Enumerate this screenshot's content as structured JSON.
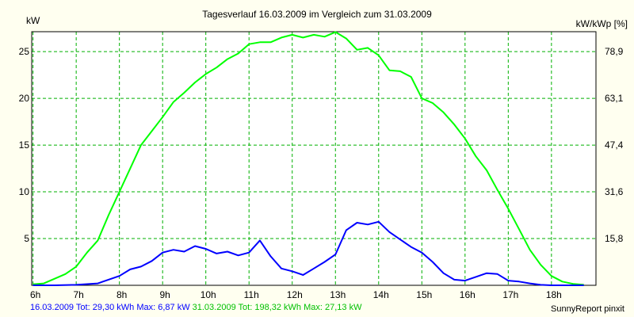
{
  "chart_data": {
    "type": "line",
    "title": "Tagesverlauf 16.03.2009 im Vergleich zum 31.03.2009",
    "ylabel": "kW",
    "ylabel_right": "kW/kWp [%]",
    "x_ticks": [
      "6h",
      "7h",
      "8h",
      "9h",
      "10h",
      "11h",
      "12h",
      "13h",
      "14h",
      "15h",
      "16h",
      "17h",
      "18h"
    ],
    "y_ticks": [
      5,
      10,
      15,
      20,
      25
    ],
    "y2_ticks": [
      "15,8",
      "31,6",
      "47,4",
      "63,1",
      "78,9"
    ],
    "xlim": [
      5.97,
      19.03
    ],
    "ylim": [
      0,
      27.13
    ],
    "grid": true,
    "series": [
      {
        "name": "31.03.2009",
        "color": "#00ff00",
        "x": [
          6.0,
          6.25,
          6.5,
          6.75,
          7.0,
          7.25,
          7.5,
          7.75,
          8.0,
          8.25,
          8.5,
          8.75,
          9.0,
          9.25,
          9.5,
          9.75,
          10.0,
          10.25,
          10.5,
          10.75,
          11.0,
          11.25,
          11.5,
          11.75,
          12.0,
          12.25,
          12.5,
          12.75,
          13.0,
          13.25,
          13.5,
          13.75,
          14.0,
          14.25,
          14.5,
          14.75,
          15.0,
          15.25,
          15.5,
          15.75,
          16.0,
          16.25,
          16.5,
          16.75,
          17.0,
          17.25,
          17.5,
          17.75,
          18.0,
          18.25,
          18.5,
          18.75
        ],
        "values": [
          0.1,
          0.2,
          0.7,
          1.2,
          2.0,
          3.5,
          4.8,
          7.5,
          10.0,
          12.5,
          15.0,
          16.5,
          18.0,
          19.6,
          20.6,
          21.7,
          22.6,
          23.3,
          24.2,
          24.8,
          25.8,
          26.0,
          26.0,
          26.5,
          26.8,
          26.5,
          26.8,
          26.6,
          27.1,
          26.4,
          25.2,
          25.4,
          24.6,
          23.0,
          22.9,
          22.3,
          20.0,
          19.5,
          18.5,
          17.2,
          15.7,
          13.8,
          12.3,
          10.2,
          8.2,
          6.0,
          3.8,
          2.2,
          1.0,
          0.4,
          0.15,
          0.05
        ]
      },
      {
        "name": "16.03.2009",
        "color": "#0000ff",
        "x": [
          6.0,
          6.5,
          7.0,
          7.5,
          8.0,
          8.25,
          8.5,
          8.75,
          9.0,
          9.25,
          9.5,
          9.75,
          10.0,
          10.25,
          10.5,
          10.75,
          11.0,
          11.25,
          11.5,
          11.75,
          12.0,
          12.25,
          12.5,
          12.75,
          13.0,
          13.25,
          13.5,
          13.75,
          14.0,
          14.25,
          14.5,
          14.75,
          15.0,
          15.25,
          15.5,
          15.75,
          16.0,
          16.25,
          16.5,
          16.75,
          17.0,
          17.25,
          17.5,
          17.75,
          18.0,
          18.25,
          18.5,
          18.75
        ],
        "values": [
          0.0,
          0.0,
          0.05,
          0.2,
          1.0,
          1.7,
          2.0,
          2.6,
          3.5,
          3.8,
          3.6,
          4.2,
          3.9,
          3.4,
          3.6,
          3.2,
          3.5,
          4.8,
          3.1,
          1.8,
          1.5,
          1.1,
          1.8,
          2.5,
          3.3,
          5.9,
          6.7,
          6.5,
          6.8,
          5.7,
          4.9,
          4.1,
          3.5,
          2.5,
          1.3,
          0.6,
          0.5,
          0.9,
          1.3,
          1.2,
          0.5,
          0.4,
          0.2,
          0.05,
          0.0,
          0.0,
          0.0,
          0.0
        ]
      }
    ]
  },
  "footer": {
    "day1": "16.03.2009 Tot: 29,30 kWh Max: 6,87 kW",
    "day2": "31.03.2009 Tot: 198,32 kWh Max: 27,13 kW",
    "color1": "#0000ff",
    "color2": "#00c000"
  },
  "credit": "SunnyReport pinxit"
}
